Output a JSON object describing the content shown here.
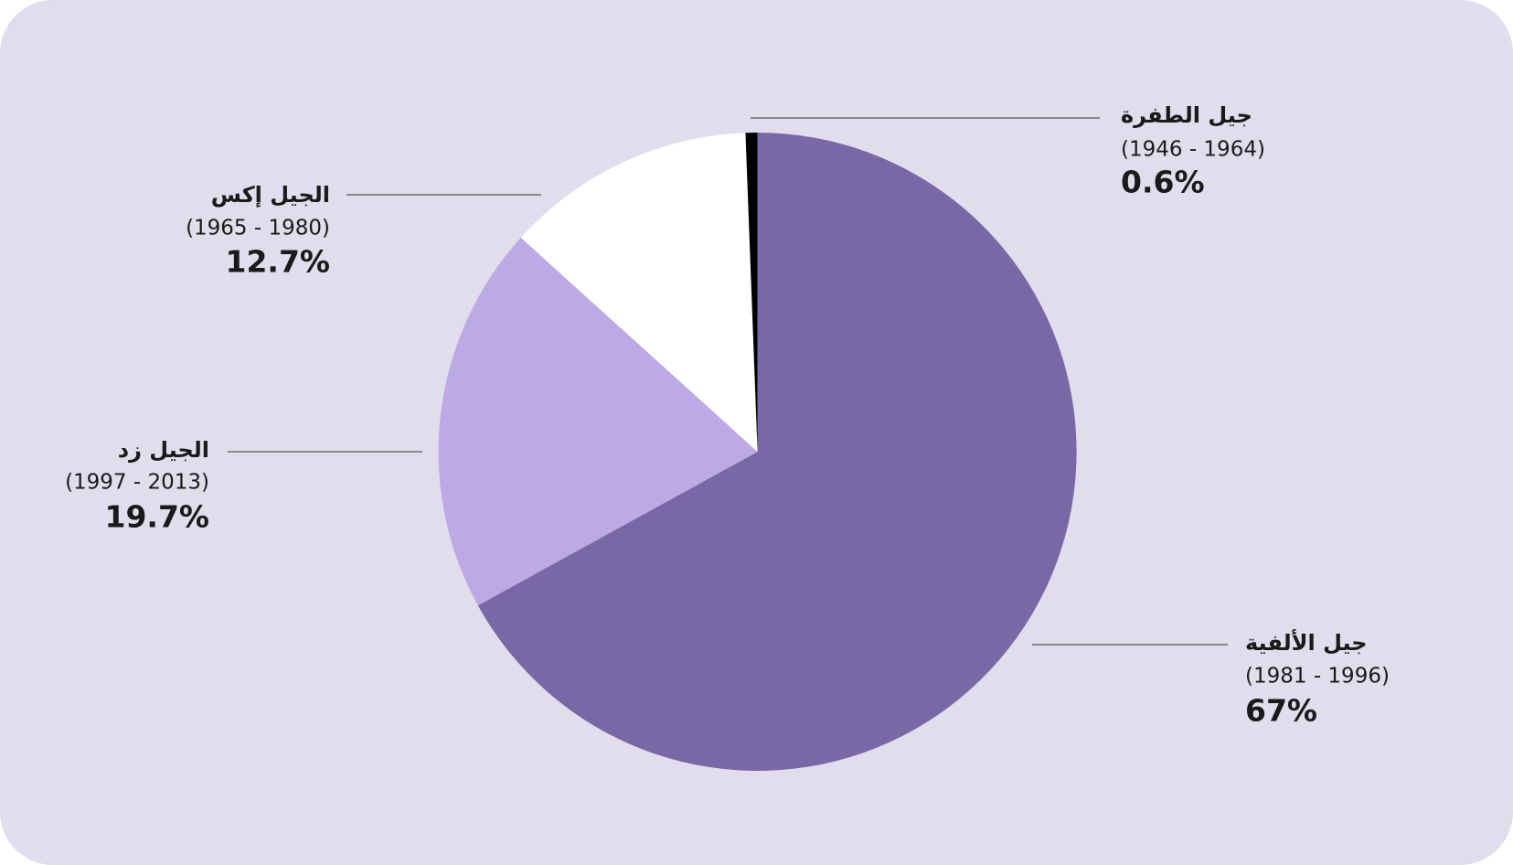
{
  "chart_data": {
    "type": "pie",
    "categories": [
      "جيل الألفية",
      "الجيل زد",
      "الجيل إكس",
      "جيل الطفرة"
    ],
    "sublabels": [
      "(1981 - 1996)",
      "(1997 - 2013)",
      "(1965 - 1980)",
      "(1946 - 1964)"
    ],
    "values": [
      67,
      19.7,
      12.7,
      0.6
    ],
    "value_labels": [
      "67%",
      "19.7%",
      "12.7%",
      "0.6%"
    ],
    "colors": [
      "#7968a6",
      "#bca9e5",
      "#ffffff",
      "#000000"
    ]
  }
}
